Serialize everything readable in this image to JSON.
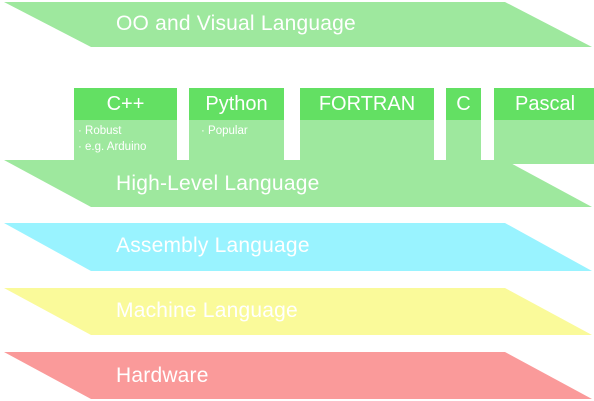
{
  "colors": {
    "oo": "#9ee89e",
    "high": "#9ee89e",
    "box_top": "#63e063",
    "box_body": "#9ee89e",
    "assembly": "#99f3ff",
    "machine": "#fafa9a",
    "hardware": "#fa9a9a"
  },
  "layers": {
    "oo": "OO and Visual Language",
    "high": "High-Level Language",
    "assembly": "Assembly Language",
    "machine": "Machine Language",
    "hardware": "Hardware"
  },
  "languages": [
    {
      "name": "C++",
      "notes": [
        "Robust",
        "e.g. Arduino"
      ]
    },
    {
      "name": "Python",
      "notes": [
        "Popular"
      ]
    },
    {
      "name": "FORTRAN",
      "notes": []
    },
    {
      "name": "C",
      "notes": []
    },
    {
      "name": "Pascal",
      "notes": []
    }
  ]
}
